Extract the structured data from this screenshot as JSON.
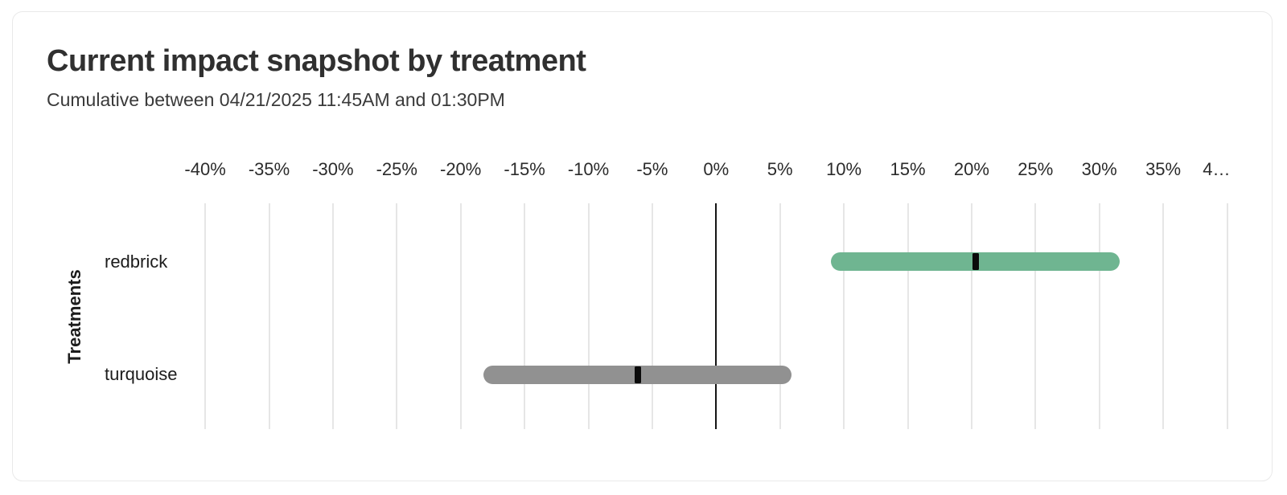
{
  "card": {
    "title": "Current impact snapshot by treatment",
    "subtitle": "Cumulative between 04/21/2025 11:45AM and 01:30PM"
  },
  "chart_data": {
    "type": "bar",
    "variant": "horizontal-interval-bars-with-point-estimate",
    "title": "Current impact snapshot by treatment",
    "subtitle": "Cumulative between 04/21/2025 11:45AM and 01:30PM",
    "xlabel": "",
    "ylabel": "Treatments",
    "x_unit": "percent",
    "xlim": [
      -40,
      40
    ],
    "x_tick_step": 5,
    "grid": true,
    "legend": "none",
    "x_ticks": [
      -40,
      -35,
      -30,
      -25,
      -20,
      -15,
      -10,
      -5,
      0,
      5,
      10,
      15,
      20,
      25,
      30,
      35,
      40
    ],
    "x_tick_labels": [
      "-40%",
      "-35%",
      "-30%",
      "-25%",
      "-20%",
      "-15%",
      "-10%",
      "-5%",
      "0%",
      "5%",
      "10%",
      "15%",
      "20%",
      "25%",
      "30%",
      "35%",
      "4…"
    ],
    "categories": [
      "redbrick",
      "turquoise"
    ],
    "series": [
      {
        "name": "redbrick",
        "point_estimate_pct": 20.3,
        "ci_low_pct": 9.0,
        "ci_high_pct": 31.6,
        "bar_color": "#6fb591",
        "marker_color": "#0b0b0b"
      },
      {
        "name": "turquoise",
        "point_estimate_pct": -6.1,
        "ci_low_pct": -18.2,
        "ci_high_pct": 5.9,
        "bar_color": "#919191",
        "marker_color": "#0b0b0b"
      }
    ],
    "colors": {
      "grid_line": "#e6e6e6",
      "zero_line": "#141414",
      "axis_label": "#2b2b2b",
      "row_label": "#1c1c1c",
      "card_border": "#e9e9e9",
      "title_text": "#303030"
    }
  }
}
